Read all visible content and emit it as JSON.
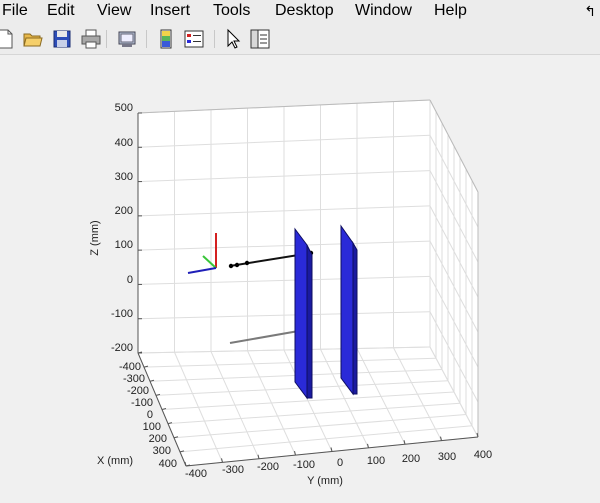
{
  "menu": {
    "file": "File",
    "edit": "Edit",
    "view": "View",
    "insert": "Insert",
    "tools": "Tools",
    "desktop": "Desktop",
    "window": "Window",
    "help": "Help"
  },
  "toolbar": {
    "icons": [
      "new-file-icon",
      "open-folder-icon",
      "save-icon",
      "print-icon",
      "print-preview-icon",
      "link-plot-icon",
      "insert-legend-icon",
      "pointer-icon",
      "property-editor-icon"
    ]
  },
  "axes": {
    "zlabel": "Z (mm)",
    "xlabel": "X (mm)",
    "ylabel": "Y (mm)",
    "z_ticks": [
      "500",
      "400",
      "300",
      "200",
      "100",
      "0",
      "-100",
      "-200"
    ],
    "x_ticks": [
      "-400",
      "-300",
      "-200",
      "-100",
      "0",
      "100",
      "200",
      "300",
      "400"
    ],
    "y_ticks": [
      "-400",
      "-300",
      "-200",
      "-100",
      "0",
      "100",
      "200",
      "300",
      "400"
    ]
  },
  "colors": {
    "plate": "#2a2ad8",
    "axis_x": "#d42020",
    "axis_y": "#2ea82e",
    "axis_z": "#1f1fb8"
  }
}
